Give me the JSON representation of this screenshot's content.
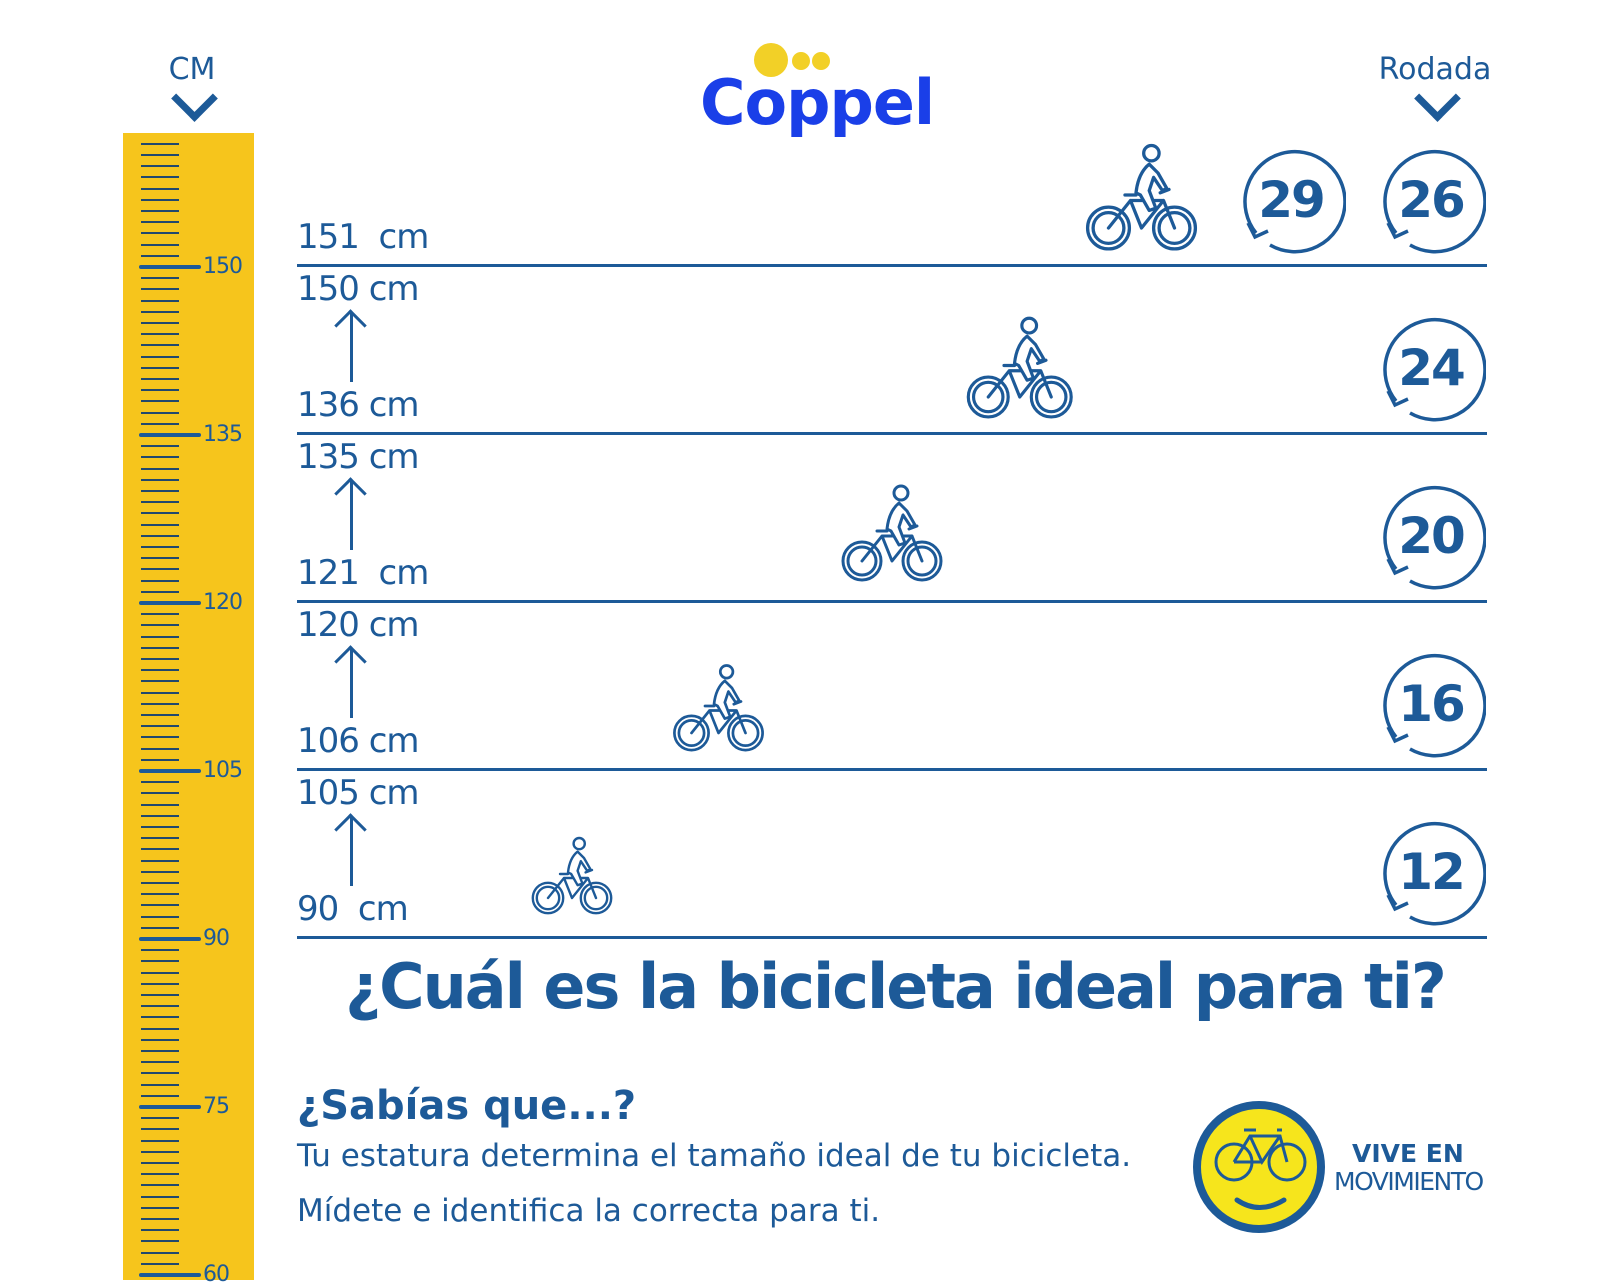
{
  "header": {
    "left_unit": "CM",
    "right_label": "Rodada"
  },
  "brand": {
    "name": "Coppel",
    "color": "#1a3fe8",
    "dot_color": "#f2d027"
  },
  "ruler": {
    "labels": [
      "150",
      "135",
      "120",
      "105",
      "90",
      "75",
      "60"
    ],
    "color": "#f6c51c"
  },
  "rows": [
    {
      "top_label": "151  cm",
      "bottom_label": "",
      "sizes": [
        "29",
        "26"
      ]
    },
    {
      "top_label": "150 cm",
      "bottom_label": "136 cm",
      "sizes": [
        "24"
      ]
    },
    {
      "top_label": "135 cm",
      "bottom_label": "121  cm",
      "sizes": [
        "20"
      ]
    },
    {
      "top_label": "120 cm",
      "bottom_label": "106 cm",
      "sizes": [
        "16"
      ]
    },
    {
      "top_label": "105 cm",
      "bottom_label": "90  cm",
      "sizes": [
        "12"
      ]
    }
  ],
  "title": "¿Cuál es la bicicleta ideal para ti?",
  "info": {
    "heading": "¿Sabías que...?",
    "line1": "Tu estatura determina el tamaño ideal de tu bicicleta.",
    "line2": "Mídete e identifica la correcta para ti."
  },
  "badge": {
    "line1": "VIVE EN",
    "line2": "MOVIMIENTO"
  },
  "colors": {
    "primary": "#1d5a98",
    "yellow": "#f6c51c"
  }
}
